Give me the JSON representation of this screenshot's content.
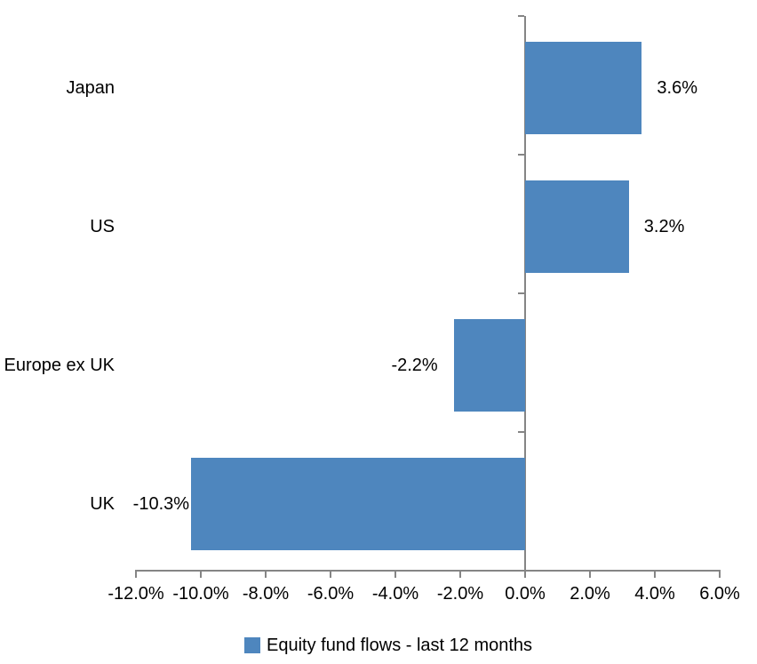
{
  "chart_data": {
    "type": "bar",
    "orientation": "horizontal",
    "title": "",
    "categories": [
      "Japan",
      "US",
      "Europe ex UK",
      "UK"
    ],
    "series": [
      {
        "name": "Equity fund flows - last 12 months",
        "values": [
          3.6,
          3.2,
          -2.2,
          -10.3
        ],
        "data_labels": [
          "3.6%",
          "3.2%",
          "-2.2%",
          "-10.3%"
        ]
      }
    ],
    "xlabel": "",
    "ylabel": "",
    "xlim": [
      -12,
      6
    ],
    "x_ticks": [
      -12,
      -10,
      -8,
      -6,
      -4,
      -2,
      0,
      2,
      4,
      6
    ],
    "x_tick_labels": [
      "-12.0%",
      "-10.0%",
      "-8.0%",
      "-6.0%",
      "-4.0%",
      "-2.0%",
      "0.0%",
      "2.0%",
      "4.0%",
      "6.0%"
    ],
    "grid": false,
    "legend_position": "bottom",
    "bar_color": "#4E86BE",
    "axis_color": "#858585",
    "text_color": "#000000"
  },
  "legend": {
    "label": "Equity fund flows - last 12 months",
    "marker_color": "#4E86BE"
  }
}
